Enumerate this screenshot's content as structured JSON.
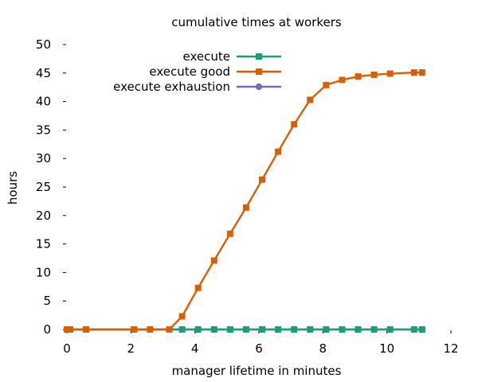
{
  "chart_data": {
    "type": "line",
    "title": "cumulative times at workers",
    "xlabel": "manager lifetime in minutes",
    "ylabel": "hours",
    "xlim": [
      0,
      12
    ],
    "ylim": [
      0,
      50
    ],
    "xticks": [
      0,
      2,
      4,
      6,
      8,
      10,
      12
    ],
    "yticks": [
      0,
      5,
      10,
      15,
      20,
      25,
      30,
      35,
      40,
      45,
      50
    ],
    "grid": false,
    "legend_position": "top-right",
    "series": [
      {
        "name": "execute",
        "color": "#1b9e77",
        "marker": "square",
        "x": [
          0,
          0.1,
          0.6,
          2.1,
          2.6,
          3.2,
          3.6,
          4.1,
          4.6,
          5.1,
          5.6,
          6.1,
          6.6,
          7.1,
          7.6,
          8.1,
          8.6,
          9.1,
          9.6,
          10.1,
          10.85,
          11.1
        ],
        "y": [
          0,
          0,
          0,
          0,
          0,
          0,
          0,
          0,
          0,
          0,
          0,
          0,
          0,
          0,
          0,
          0,
          0,
          0,
          0,
          0,
          0,
          0
        ]
      },
      {
        "name": "execute good",
        "color": "#d95f02",
        "marker": "square",
        "x": [
          0,
          0.1,
          0.6,
          2.1,
          2.6,
          3.2,
          3.6,
          4.1,
          4.6,
          5.1,
          5.6,
          6.1,
          6.6,
          7.1,
          7.6,
          8.1,
          8.6,
          9.1,
          9.6,
          10.1,
          10.85,
          11.1
        ],
        "y": [
          0,
          0,
          0,
          0,
          0,
          0,
          2.3,
          7.3,
          12.1,
          16.8,
          21.4,
          26.3,
          31.2,
          36.0,
          40.3,
          42.9,
          43.8,
          44.4,
          44.7,
          44.9,
          45.1,
          45.1
        ]
      },
      {
        "name": "execute exhaustion",
        "color": "#7570b3",
        "marker": "circle",
        "x": [
          0,
          0.1,
          0.6,
          2.1,
          2.6,
          3.2,
          3.6,
          4.1,
          4.6,
          5.1,
          5.6,
          6.1,
          6.6,
          7.1,
          7.6,
          8.1,
          8.6,
          9.1,
          9.6,
          10.1,
          10.85,
          11.1
        ],
        "y": [
          0,
          0,
          0,
          0,
          0,
          0,
          0,
          0,
          0,
          0,
          0,
          0,
          0,
          0,
          0,
          0,
          0,
          0,
          0,
          0,
          0,
          0
        ]
      }
    ]
  }
}
